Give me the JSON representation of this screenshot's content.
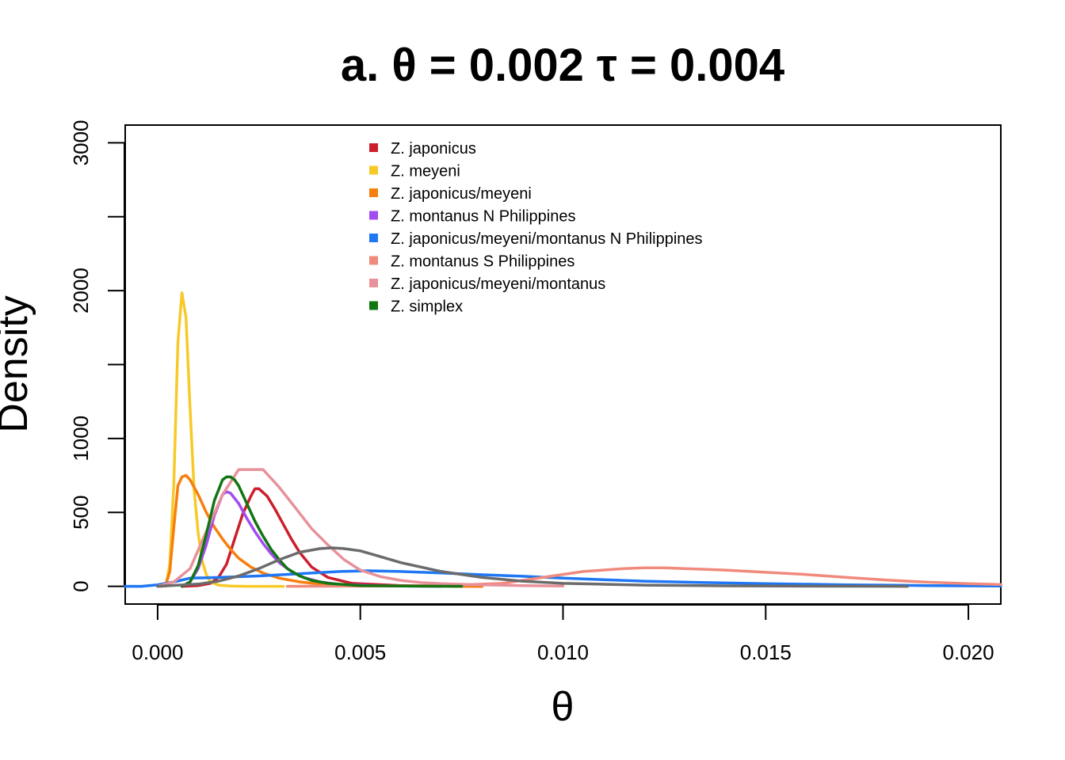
{
  "chart_data": {
    "type": "line",
    "title": "a. θ = 0.002 τ = 0.004",
    "xlabel": "θ",
    "ylabel": "Density",
    "xlim": [
      -0.0008,
      0.0208
    ],
    "ylim": [
      -120,
      3120
    ],
    "x_ticks": [
      0.0,
      0.005,
      0.01,
      0.015,
      0.02
    ],
    "x_tick_labels": [
      "0.000",
      "0.005",
      "0.010",
      "0.015",
      "0.020"
    ],
    "y_ticks": [
      0,
      500,
      1000,
      1500,
      2000,
      2500,
      3000
    ],
    "y_tick_labels": [
      "0",
      "500",
      "1000",
      "",
      "2000",
      "",
      "3000"
    ],
    "legend_position": "top-center",
    "grid": false,
    "series": [
      {
        "name": "Z. japonicus",
        "color": "#CC1F2E",
        "x": [
          0.0006,
          0.001,
          0.0013,
          0.0015,
          0.0017,
          0.0019,
          0.0021,
          0.0023,
          0.0024,
          0.0025,
          0.0027,
          0.0029,
          0.0031,
          0.0033,
          0.0035,
          0.0038,
          0.0042,
          0.0048,
          0.006,
          0.008
        ],
        "y": [
          0,
          5,
          20,
          60,
          150,
          320,
          490,
          610,
          660,
          660,
          610,
          520,
          420,
          320,
          230,
          130,
          60,
          20,
          5,
          0
        ]
      },
      {
        "name": "Z. meyeni",
        "color": "#F7C928",
        "x": [
          0.0002,
          0.0003,
          0.0004,
          0.0005,
          0.0006,
          0.0007,
          0.0008,
          0.0009,
          0.001,
          0.0011,
          0.0012,
          0.0013,
          0.0015,
          0.0018,
          0.0022,
          0.0031
        ],
        "y": [
          0,
          150,
          700,
          1650,
          1985,
          1820,
          1200,
          650,
          360,
          170,
          80,
          30,
          8,
          2,
          0,
          0
        ]
      },
      {
        "name": "Z. japonicus/meyeni",
        "color": "#F77F0E",
        "x": [
          0.0001,
          0.0002,
          0.0003,
          0.0004,
          0.0005,
          0.0006,
          0.0007,
          0.0008,
          0.001,
          0.0012,
          0.0014,
          0.0016,
          0.0018,
          0.002,
          0.0023,
          0.0026,
          0.003,
          0.0035,
          0.004,
          0.005,
          0.006,
          0.008
        ],
        "y": [
          0,
          10,
          100,
          400,
          680,
          740,
          750,
          720,
          620,
          500,
          400,
          320,
          250,
          190,
          130,
          90,
          55,
          30,
          15,
          5,
          2,
          0
        ]
      },
      {
        "name": "Z. montanus N Philippines",
        "color": "#A14CEF",
        "x": [
          0.0006,
          0.0008,
          0.001,
          0.0012,
          0.0014,
          0.0016,
          0.0017,
          0.0018,
          0.002,
          0.0022,
          0.0024,
          0.0026,
          0.0028,
          0.003,
          0.0033,
          0.0036,
          0.004,
          0.0045,
          0.0055,
          0.007
        ],
        "y": [
          0,
          30,
          120,
          280,
          480,
          620,
          640,
          630,
          560,
          460,
          370,
          290,
          220,
          160,
          100,
          60,
          30,
          12,
          3,
          0
        ]
      },
      {
        "name": "Z. japonicus/meyeni/montanus N Philippines",
        "color": "#1F77F4",
        "x": [
          -0.0008,
          -0.0004,
          0.0,
          0.0004,
          0.0008,
          0.0015,
          0.0025,
          0.0035,
          0.0045,
          0.0052,
          0.006,
          0.007,
          0.008,
          0.009,
          0.01,
          0.011,
          0.012,
          0.0135,
          0.015,
          0.017,
          0.019,
          0.0208
        ],
        "y": [
          0,
          0,
          10,
          30,
          55,
          60,
          70,
          85,
          100,
          105,
          100,
          90,
          78,
          68,
          55,
          45,
          35,
          25,
          18,
          10,
          5,
          2
        ]
      },
      {
        "name": "Z. montanus S Philippines",
        "color": "#F08A7C",
        "x": [
          0.0032,
          0.005,
          0.007,
          0.0085,
          0.0095,
          0.0105,
          0.0115,
          0.012,
          0.0125,
          0.013,
          0.014,
          0.015,
          0.016,
          0.017,
          0.018,
          0.019,
          0.02,
          0.0208
        ],
        "y": [
          0,
          1,
          5,
          20,
          60,
          100,
          120,
          125,
          125,
          120,
          110,
          95,
          80,
          60,
          42,
          28,
          18,
          12
        ]
      },
      {
        "name": "Z. japonicus/meyeni/montanus",
        "color": "#E8919A",
        "x": [
          0.0,
          0.0004,
          0.0008,
          0.0012,
          0.0016,
          0.002,
          0.0026,
          0.003,
          0.0034,
          0.0038,
          0.0042,
          0.0046,
          0.005,
          0.0055,
          0.006,
          0.0065,
          0.007,
          0.008,
          0.009,
          0.01
        ],
        "y": [
          0,
          30,
          120,
          370,
          620,
          790,
          790,
          670,
          530,
          390,
          280,
          180,
          110,
          65,
          40,
          25,
          18,
          10,
          5,
          2
        ]
      },
      {
        "name": "Z. simplex",
        "color": "#137512",
        "x": [
          0.0006,
          0.0008,
          0.001,
          0.0012,
          0.0014,
          0.0016,
          0.0017,
          0.0018,
          0.0019,
          0.002,
          0.0022,
          0.0024,
          0.0026,
          0.0028,
          0.003,
          0.0032,
          0.0035,
          0.0038,
          0.0042,
          0.005,
          0.006,
          0.0075
        ],
        "y": [
          0,
          30,
          140,
          350,
          580,
          720,
          740,
          740,
          720,
          680,
          560,
          440,
          340,
          250,
          180,
          120,
          70,
          40,
          20,
          5,
          2,
          0
        ]
      },
      {
        "name": "",
        "color": "#6B6B6B",
        "x": [
          0.0,
          0.001,
          0.0015,
          0.002,
          0.0025,
          0.003,
          0.0035,
          0.004,
          0.0043,
          0.0046,
          0.005,
          0.0055,
          0.006,
          0.007,
          0.008,
          0.009,
          0.01,
          0.012,
          0.014,
          0.016,
          0.0185
        ],
        "y": [
          0,
          15,
          35,
          70,
          120,
          180,
          230,
          255,
          260,
          255,
          240,
          200,
          160,
          100,
          60,
          35,
          20,
          8,
          3,
          1,
          0
        ]
      }
    ]
  }
}
